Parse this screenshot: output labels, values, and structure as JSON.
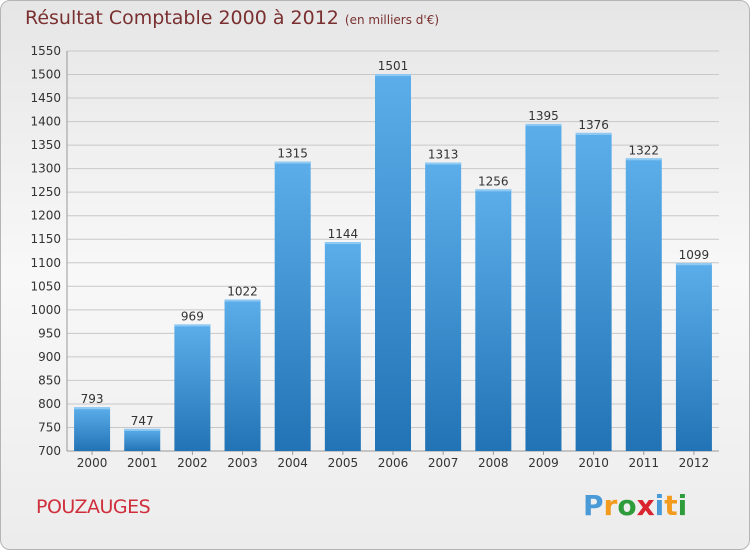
{
  "header": {
    "title": "Résultat Comptable 2000 à 2012",
    "subtitle": "(en milliers d'€)"
  },
  "footer": {
    "town": "POUZAUGES",
    "brand_letters": [
      "P",
      "r",
      "o",
      "x",
      "i",
      "t",
      "i"
    ]
  },
  "colors": {
    "bar_top": "#5caeea",
    "bar_bottom": "#2273b5",
    "grid": "#c8c8c8",
    "title": "#7a3030",
    "town": "#cf2f3c",
    "brand": [
      "#4a9ad8",
      "#f39b1f",
      "#2e9c3a",
      "#d9232e",
      "#4a9ad8",
      "#f39b1f",
      "#2e9c3a"
    ]
  },
  "chart_data": {
    "type": "bar",
    "title": "Résultat Comptable 2000 à 2012",
    "subtitle": "(en milliers d'€)",
    "xlabel": "",
    "ylabel": "",
    "categories": [
      "2000",
      "2001",
      "2002",
      "2003",
      "2004",
      "2005",
      "2006",
      "2007",
      "2008",
      "2009",
      "2010",
      "2011",
      "2012"
    ],
    "values": [
      793,
      747,
      969,
      1022,
      1315,
      1144,
      1501,
      1313,
      1256,
      1395,
      1376,
      1322,
      1099
    ],
    "ylim": [
      700,
      1550
    ],
    "yticks": [
      700,
      750,
      800,
      850,
      900,
      950,
      1000,
      1050,
      1100,
      1150,
      1200,
      1250,
      1300,
      1350,
      1400,
      1450,
      1500,
      1550
    ],
    "grid": true
  }
}
